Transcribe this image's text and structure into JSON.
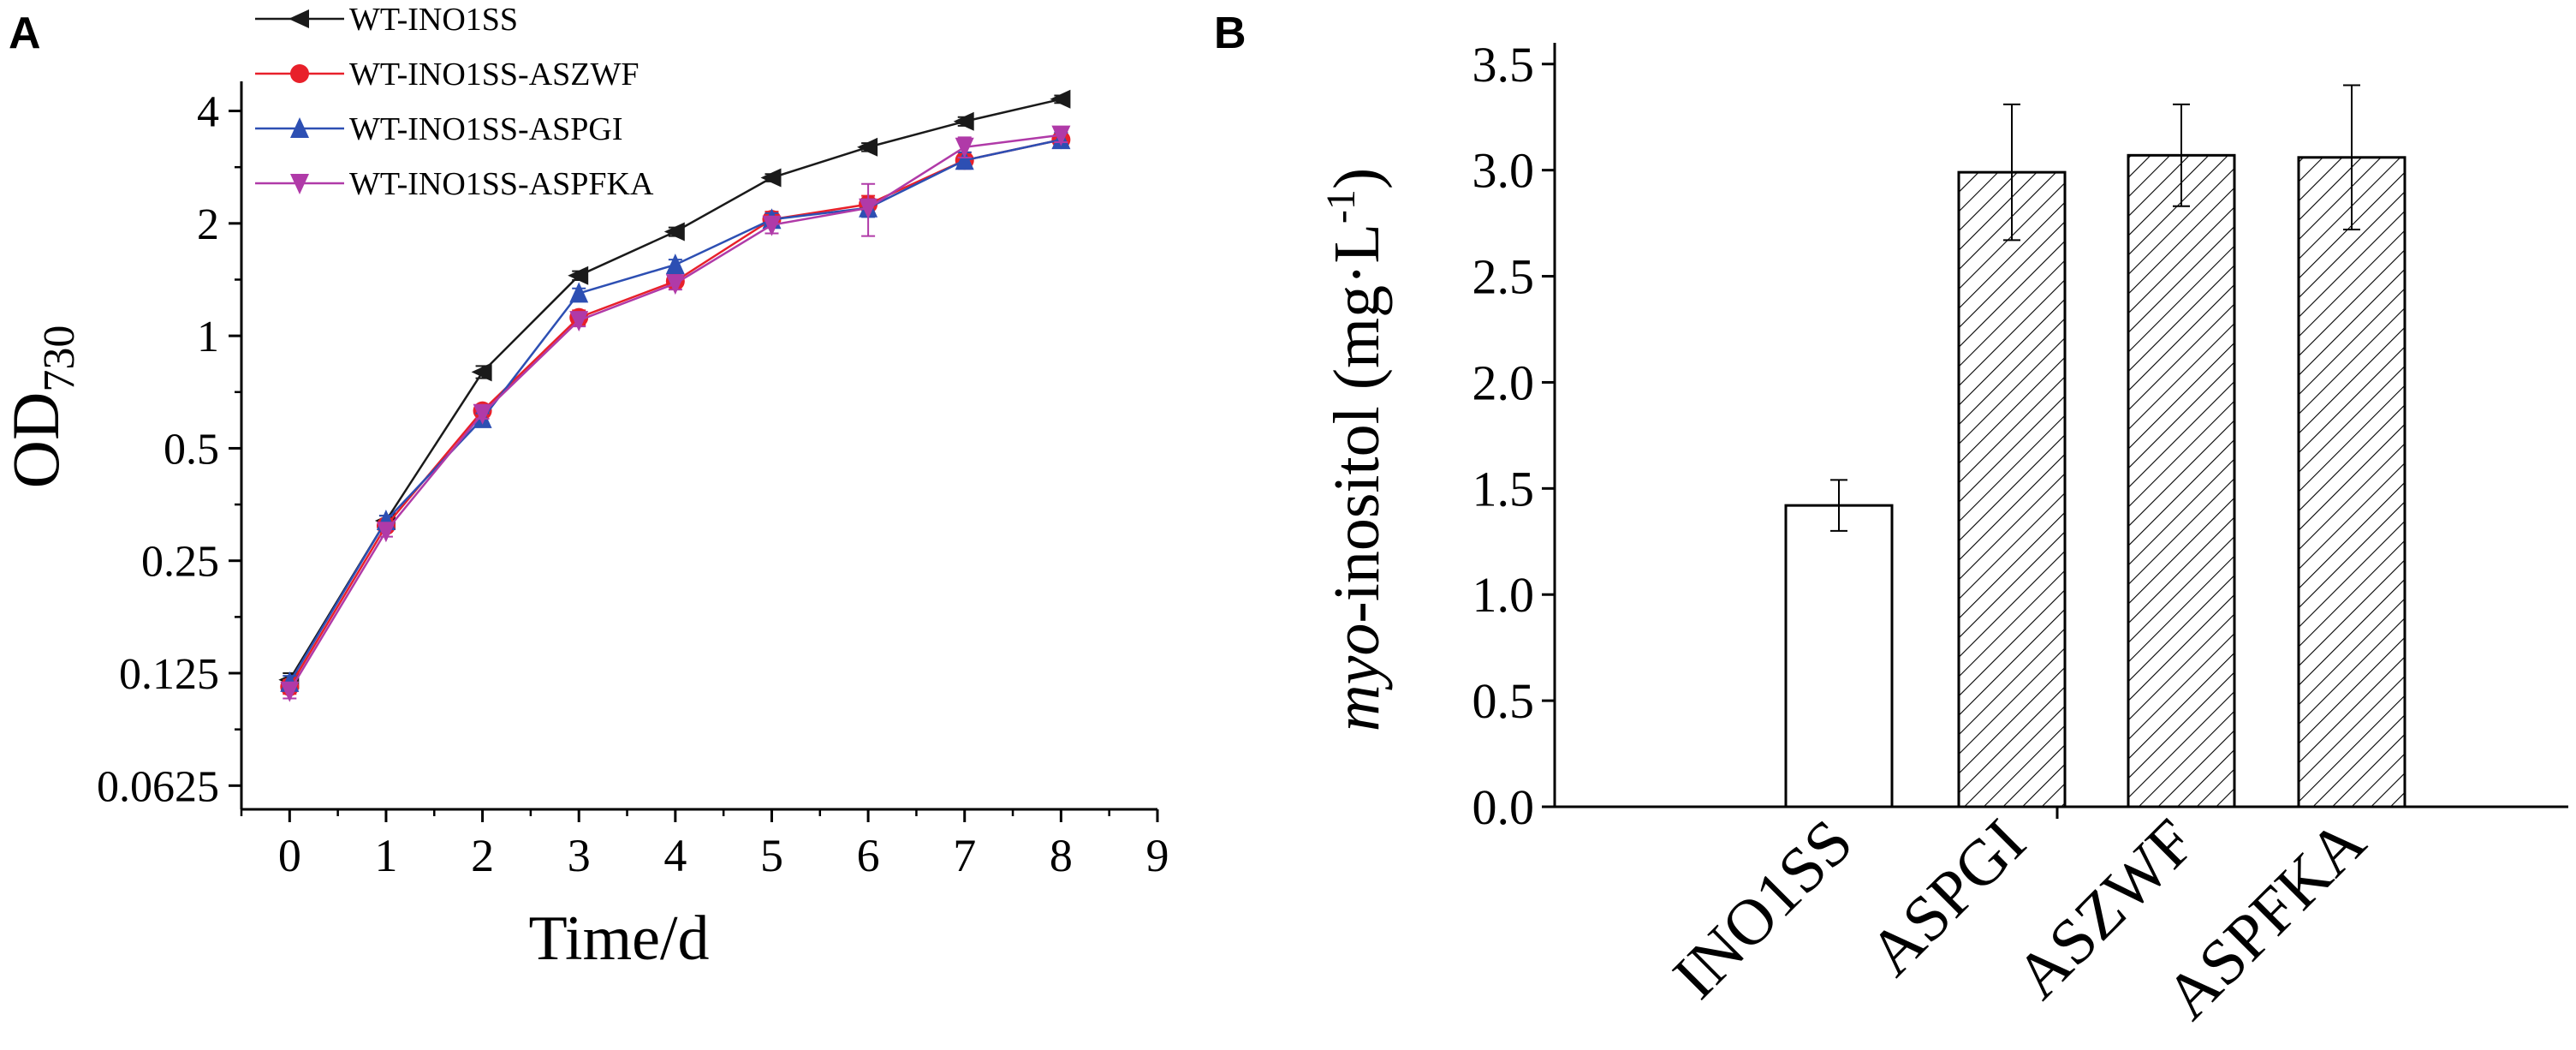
{
  "panel_labels": {
    "a": "A",
    "b": "B"
  },
  "chart_data": [
    {
      "type": "line",
      "panel": "A",
      "title": "",
      "xlabel": "Time/d",
      "ylabel_main": "OD",
      "ylabel_sub": "730",
      "yscale": "log2",
      "xlim": [
        -0.5,
        9
      ],
      "ylim": [
        0.054,
        4.8
      ],
      "x_ticks": [
        0,
        1,
        2,
        3,
        4,
        5,
        6,
        7,
        8,
        9
      ],
      "x_tick_labels": [
        "0",
        "1",
        "2",
        "3",
        "4",
        "5",
        "6",
        "7",
        "8",
        "9"
      ],
      "y_ticks": [
        0.0625,
        0.125,
        0.25,
        0.5,
        1,
        2,
        4
      ],
      "y_tick_labels": [
        "0.0625",
        "0.125",
        "0.25",
        "0.5",
        "1",
        "2",
        "4"
      ],
      "legend_position": "top",
      "x": [
        0,
        1,
        2,
        3,
        4,
        5,
        6,
        7,
        8
      ],
      "series": [
        {
          "name": "WT-INO1SS",
          "color": "#1a1a1a",
          "marker": "triangle-left",
          "values": [
            0.12,
            0.32,
            0.8,
            1.45,
            1.9,
            2.65,
            3.2,
            3.75,
            4.3
          ],
          "errors": [
            0.005,
            0.01,
            0.03,
            0.04,
            0.05,
            0.06,
            0.08,
            0.1,
            0.1
          ]
        },
        {
          "name": "WT-INO1SS-ASZWF",
          "color": "#e8202a",
          "marker": "circle",
          "values": [
            0.115,
            0.31,
            0.63,
            1.12,
            1.4,
            2.05,
            2.25,
            2.95,
            3.35
          ],
          "errors": [
            0.005,
            0.01,
            0.02,
            0.05,
            0.05,
            0.1,
            0.12,
            0.15,
            0.15
          ]
        },
        {
          "name": "WT-INO1SS-ASPGI",
          "color": "#2d4fb3",
          "marker": "triangle-up",
          "values": [
            0.118,
            0.32,
            0.6,
            1.3,
            1.55,
            2.05,
            2.2,
            2.95,
            3.35
          ],
          "errors": [
            0.005,
            0.01,
            0.02,
            0.04,
            0.05,
            0.08,
            0.12,
            0.15,
            0.15
          ]
        },
        {
          "name": "WT-INO1SS-ASPFKA",
          "color": "#b03aa8",
          "marker": "triangle-down",
          "values": [
            0.112,
            0.3,
            0.62,
            1.1,
            1.38,
            1.98,
            2.2,
            3.2,
            3.45
          ],
          "errors": [
            0.005,
            0.01,
            0.02,
            0.04,
            0.05,
            0.1,
            0.35,
            0.2,
            0.15
          ]
        }
      ]
    },
    {
      "type": "bar",
      "panel": "B",
      "title": "",
      "xlabel": "",
      "ylabel_italic": "myo",
      "ylabel_rest": "-inositol (mg·L",
      "ylabel_sup": "-1",
      "ylabel_close": ")",
      "ylim": [
        0,
        3.6
      ],
      "y_ticks": [
        0,
        0.5,
        1,
        1.5,
        2,
        2.5,
        3,
        3.5
      ],
      "y_tick_labels": [
        "0.0",
        "0.5",
        "1.0",
        "1.5",
        "2.0",
        "2.5",
        "3.0",
        "3.5"
      ],
      "categories": [
        "INO1SS",
        "ASPGI",
        "ASZWF",
        "ASPFKA"
      ],
      "values": [
        1.42,
        2.99,
        3.07,
        3.06
      ],
      "errors": [
        0.12,
        0.32,
        0.24,
        0.34
      ],
      "fills": [
        "plain",
        "hatched",
        "hatched",
        "hatched"
      ]
    }
  ]
}
